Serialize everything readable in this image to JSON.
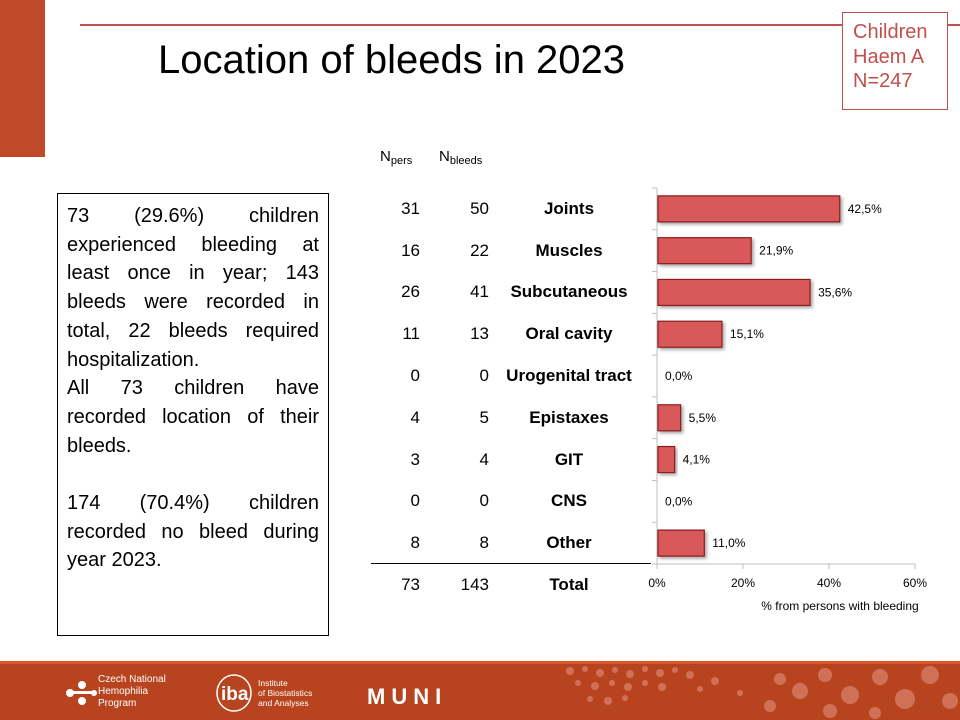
{
  "title": "Location of bleeds in 2023",
  "badge": {
    "line1": "Children",
    "line2": "Haem A",
    "line3": "N=247"
  },
  "note": {
    "p1": "73 (29.6%) children experienced bleeding at least once in year; 143 bleeds were recorded in total, 22 bleeds required hospitalization.",
    "p2": "All 73 children have recorded location of their bleeds.",
    "p3": "174 (70.4%) children recorded no bleed during year 2023."
  },
  "table": {
    "h_pers_main": "N",
    "h_pers_sub": "pers",
    "h_bleeds_main": "N",
    "h_bleeds_sub": "bleeds",
    "rows": [
      {
        "npers": "31",
        "nbleeds": "50",
        "label": "Joints"
      },
      {
        "npers": "16",
        "nbleeds": "22",
        "label": "Muscles"
      },
      {
        "npers": "26",
        "nbleeds": "41",
        "label": "Subcutaneous"
      },
      {
        "npers": "11",
        "nbleeds": "13",
        "label": "Oral cavity"
      },
      {
        "npers": "0",
        "nbleeds": "0",
        "label": "Urogenital tract"
      },
      {
        "npers": "4",
        "nbleeds": "5",
        "label": "Epistaxes"
      },
      {
        "npers": "3",
        "nbleeds": "4",
        "label": "GIT"
      },
      {
        "npers": "0",
        "nbleeds": "0",
        "label": "CNS"
      },
      {
        "npers": "8",
        "nbleeds": "8",
        "label": "Other"
      }
    ],
    "total": {
      "npers": "73",
      "nbleeds": "143",
      "label": "Total"
    }
  },
  "chart_data": {
    "type": "bar",
    "orientation": "horizontal",
    "categories": [
      "Joints",
      "Muscles",
      "Subcutaneous",
      "Oral cavity",
      "Urogenital tract",
      "Epistaxes",
      "GIT",
      "CNS",
      "Other"
    ],
    "values": [
      42.5,
      21.9,
      35.6,
      15.1,
      0.0,
      5.5,
      4.1,
      0.0,
      11.0
    ],
    "data_labels": [
      "42,5%",
      "21,9%",
      "35,6%",
      "15,1%",
      "0,0%",
      "5,5%",
      "4,1%",
      "0,0%",
      "11,0%"
    ],
    "xlabel": "% from persons with bleeding",
    "xlim": [
      0,
      60
    ],
    "xticks": [
      "0%",
      "20%",
      "40%",
      "60%"
    ],
    "bar_color": "#d9585a",
    "bar_edge": "#8b1c1c",
    "grid": false
  },
  "footer": {
    "logo1": {
      "line1": "Czech National",
      "line2": "Hemophilia",
      "line3": "Program"
    },
    "logo2": {
      "mark": "iba",
      "line1": "Institute",
      "line2": "of Biostatistics",
      "line3": "and Analyses"
    },
    "logo3": "MUNI"
  }
}
